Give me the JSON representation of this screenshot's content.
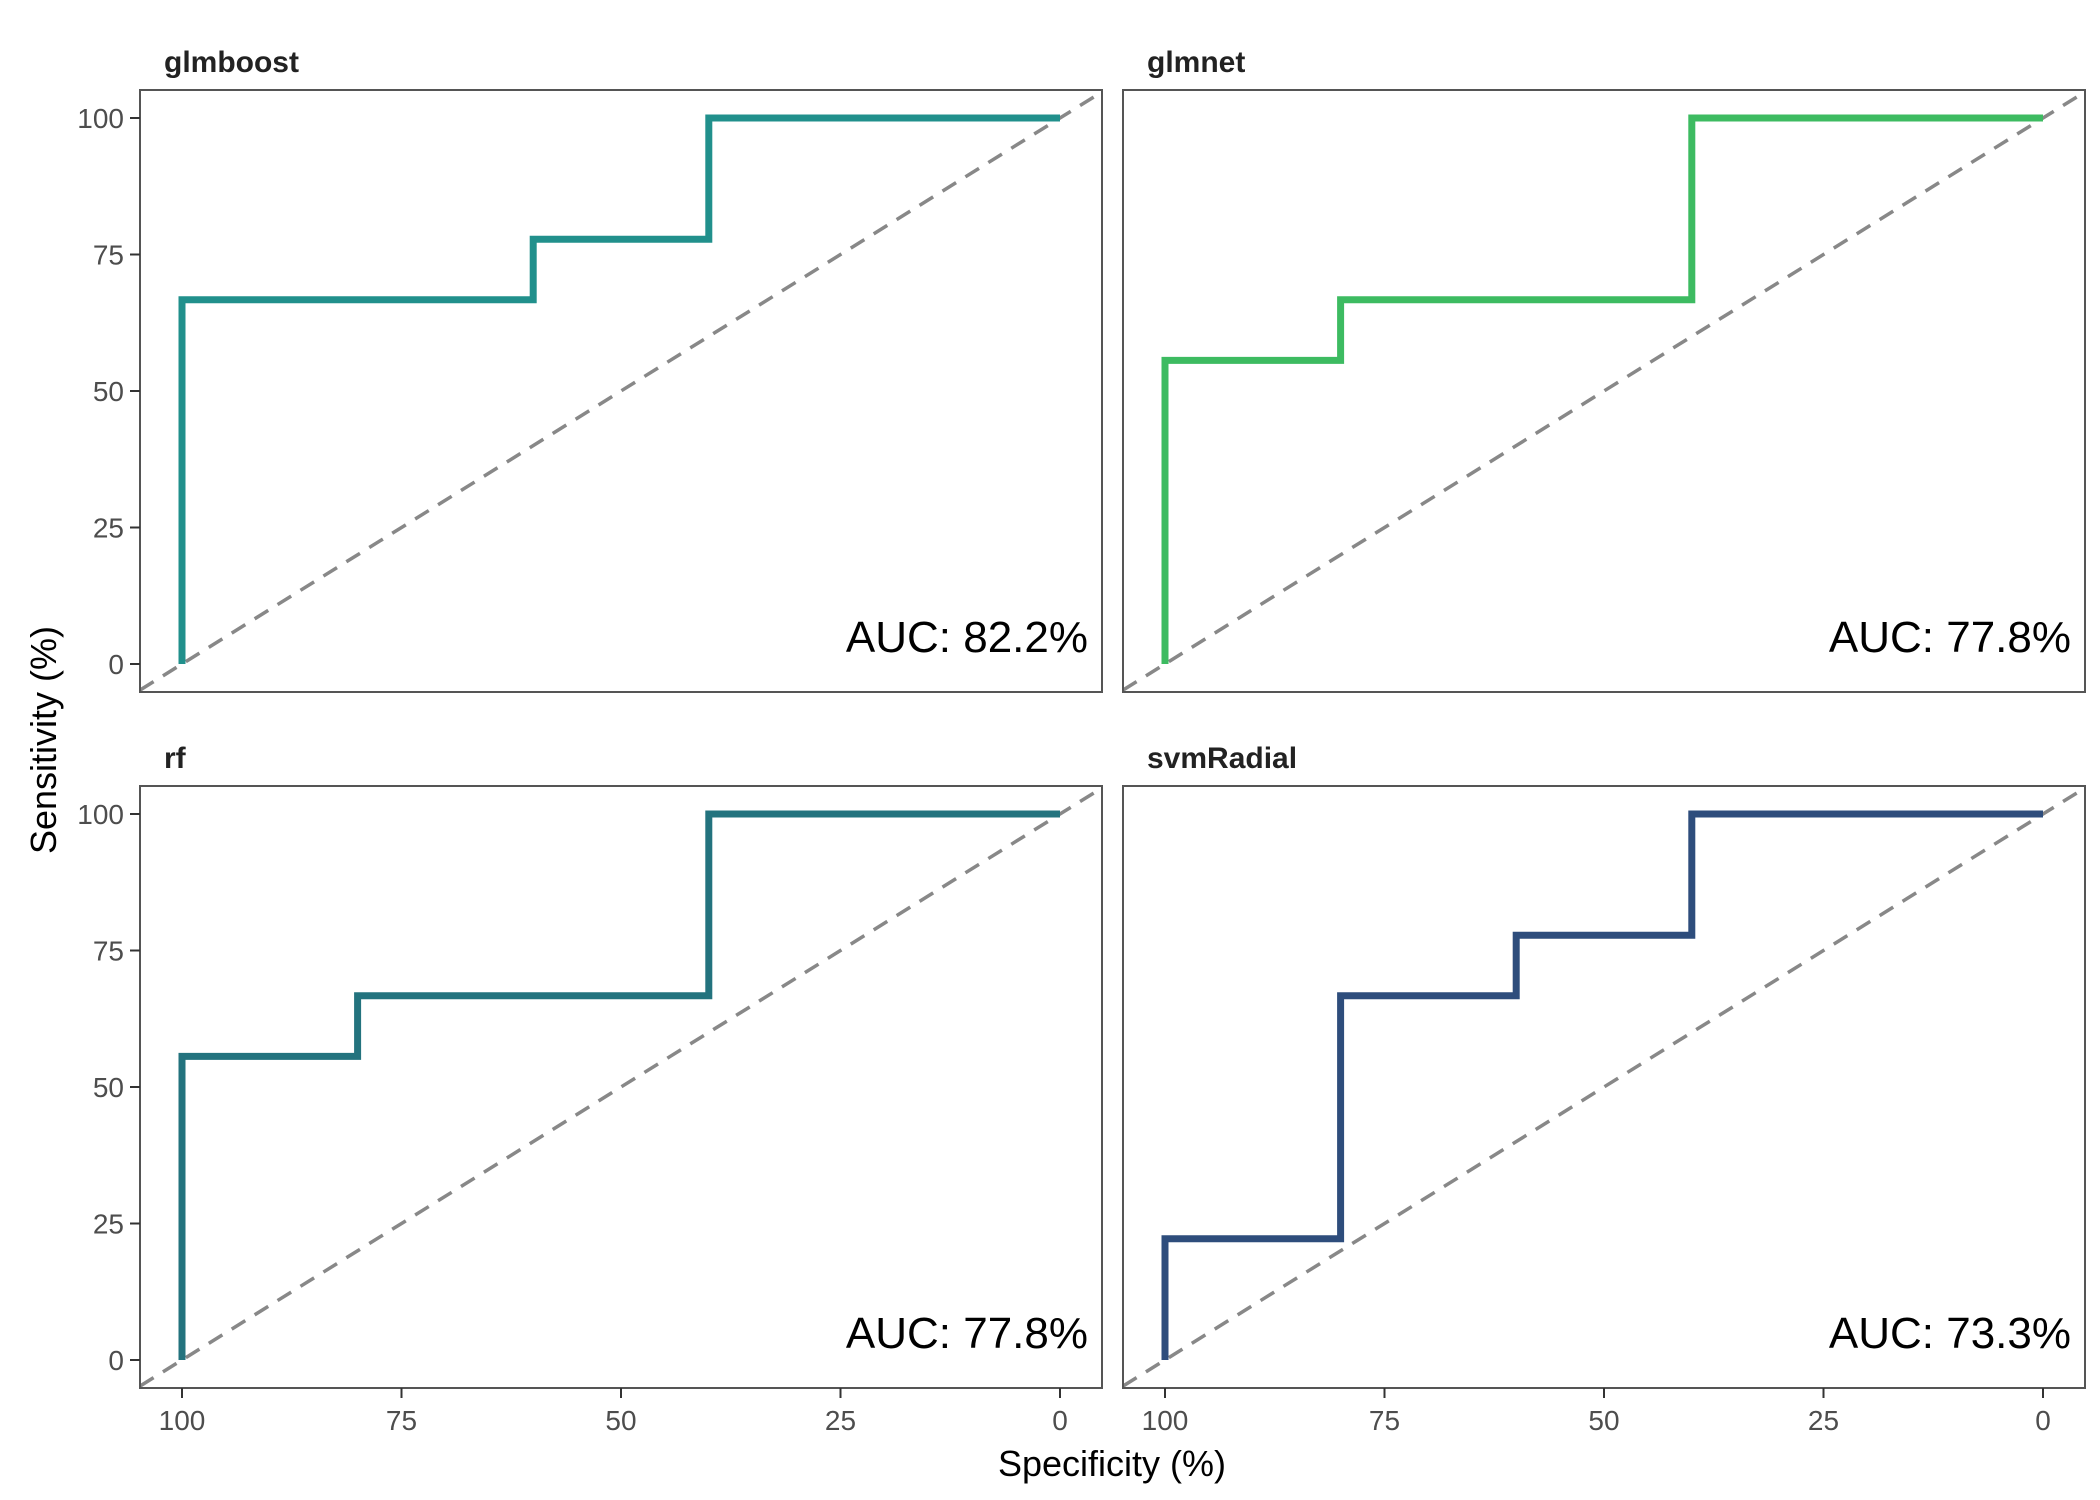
{
  "chart_data": {
    "type": "line",
    "xlabel": "Specificity (%)",
    "ylabel": "Sensitivity (%)",
    "xlim": [
      100,
      0
    ],
    "ylim": [
      0,
      100
    ],
    "x_reversed": true,
    "x_ticks": [
      100,
      75,
      50,
      25,
      0
    ],
    "y_ticks": [
      0,
      25,
      50,
      75,
      100
    ],
    "grid": false,
    "reference_line": "diagonal dashed",
    "panels": [
      {
        "name": "glmboost",
        "color": "#21908C",
        "auc_label": "AUC: 82.2%",
        "points": [
          [
            100,
            0
          ],
          [
            100,
            66.7
          ],
          [
            60,
            66.7
          ],
          [
            60,
            77.8
          ],
          [
            40,
            77.8
          ],
          [
            40,
            100
          ],
          [
            0,
            100
          ]
        ]
      },
      {
        "name": "glmnet",
        "color": "#3DBB61",
        "auc_label": "AUC: 77.8%",
        "points": [
          [
            100,
            0
          ],
          [
            100,
            55.6
          ],
          [
            80,
            55.6
          ],
          [
            80,
            66.7
          ],
          [
            40,
            66.7
          ],
          [
            40,
            100
          ],
          [
            0,
            100
          ]
        ]
      },
      {
        "name": "rf",
        "color": "#23737E",
        "auc_label": "AUC: 77.8%",
        "points": [
          [
            100,
            0
          ],
          [
            100,
            55.6
          ],
          [
            80,
            55.6
          ],
          [
            80,
            66.7
          ],
          [
            40,
            66.7
          ],
          [
            40,
            100
          ],
          [
            0,
            100
          ]
        ]
      },
      {
        "name": "svmRadial",
        "color": "#2E4D7C",
        "auc_label": "AUC: 73.3%",
        "points": [
          [
            100,
            0
          ],
          [
            100,
            22.2
          ],
          [
            80,
            22.2
          ],
          [
            80,
            66.7
          ],
          [
            60,
            66.7
          ],
          [
            60,
            77.8
          ],
          [
            40,
            77.8
          ],
          [
            40,
            100
          ],
          [
            0,
            100
          ]
        ]
      }
    ]
  }
}
